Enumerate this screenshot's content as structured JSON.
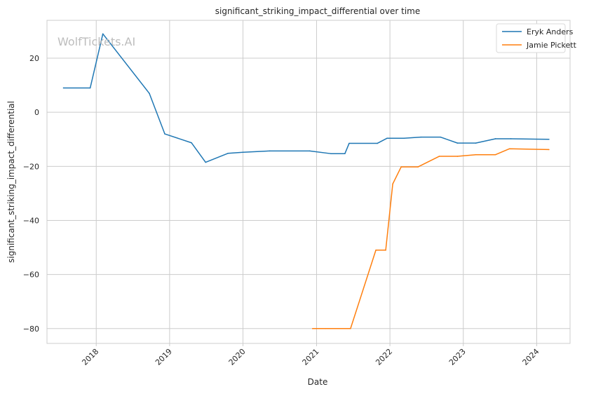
{
  "watermark": "WolfTickets.AI",
  "chart_data": {
    "type": "line",
    "title": "significant_striking_impact_differential over time",
    "xlabel": "Date",
    "ylabel": "significant_striking_impact_differential",
    "x_axis_type": "date",
    "xlim": [
      "2017-05-01",
      "2024-06-15"
    ],
    "ylim": [
      -85.5,
      34
    ],
    "x_ticks": [
      {
        "date": "2018-01-01",
        "label": "2018"
      },
      {
        "date": "2019-01-01",
        "label": "2019"
      },
      {
        "date": "2020-01-01",
        "label": "2020"
      },
      {
        "date": "2021-01-01",
        "label": "2021"
      },
      {
        "date": "2022-01-01",
        "label": "2022"
      },
      {
        "date": "2023-01-01",
        "label": "2023"
      },
      {
        "date": "2024-01-01",
        "label": "2024"
      }
    ],
    "y_ticks": [
      {
        "value": 20,
        "label": "20"
      },
      {
        "value": 0,
        "label": "0"
      },
      {
        "value": -20,
        "label": "−20"
      },
      {
        "value": -40,
        "label": "−40"
      },
      {
        "value": -60,
        "label": "−60"
      },
      {
        "value": -80,
        "label": "−80"
      }
    ],
    "grid": true,
    "legend_position": "top-right",
    "series": [
      {
        "name": "Eryk Anders",
        "color": "#1f77b4",
        "points": [
          {
            "x": "2017-07-22",
            "y": 9
          },
          {
            "x": "2017-12-02",
            "y": 9
          },
          {
            "x": "2018-02-03",
            "y": 29
          },
          {
            "x": "2018-09-22",
            "y": 7
          },
          {
            "x": "2018-12-08",
            "y": -8
          },
          {
            "x": "2019-04-20",
            "y": -11.3
          },
          {
            "x": "2019-06-29",
            "y": -18.5
          },
          {
            "x": "2019-10-18",
            "y": -15.2
          },
          {
            "x": "2020-01-01",
            "y": -14.8
          },
          {
            "x": "2020-05-13",
            "y": -14.3
          },
          {
            "x": "2020-11-28",
            "y": -14.3
          },
          {
            "x": "2021-03-13",
            "y": -15.3
          },
          {
            "x": "2021-05-22",
            "y": -15.3
          },
          {
            "x": "2021-06-12",
            "y": -11.5
          },
          {
            "x": "2021-10-30",
            "y": -11.5
          },
          {
            "x": "2021-12-18",
            "y": -9.6
          },
          {
            "x": "2022-03-12",
            "y": -9.6
          },
          {
            "x": "2022-06-04",
            "y": -9.2
          },
          {
            "x": "2022-09-10",
            "y": -9.2
          },
          {
            "x": "2022-12-03",
            "y": -11.4
          },
          {
            "x": "2023-03-04",
            "y": -11.4
          },
          {
            "x": "2023-06-10",
            "y": -9.8
          },
          {
            "x": "2023-08-26",
            "y": -9.8
          },
          {
            "x": "2024-03-02",
            "y": -10
          }
        ]
      },
      {
        "name": "Jamie Pickett",
        "color": "#ff7f0e",
        "points": [
          {
            "x": "2020-12-12",
            "y": -80
          },
          {
            "x": "2021-02-15",
            "y": -80
          },
          {
            "x": "2021-06-19",
            "y": -80
          },
          {
            "x": "2021-10-23",
            "y": -51
          },
          {
            "x": "2021-12-11",
            "y": -51
          },
          {
            "x": "2022-01-15",
            "y": -26.5
          },
          {
            "x": "2022-02-26",
            "y": -20.2
          },
          {
            "x": "2022-05-21",
            "y": -20.2
          },
          {
            "x": "2022-09-03",
            "y": -16.3
          },
          {
            "x": "2022-12-03",
            "y": -16.3
          },
          {
            "x": "2023-03-04",
            "y": -15.7
          },
          {
            "x": "2023-06-10",
            "y": -15.7
          },
          {
            "x": "2023-08-19",
            "y": -13.5
          },
          {
            "x": "2024-03-02",
            "y": -13.8
          }
        ]
      }
    ]
  }
}
